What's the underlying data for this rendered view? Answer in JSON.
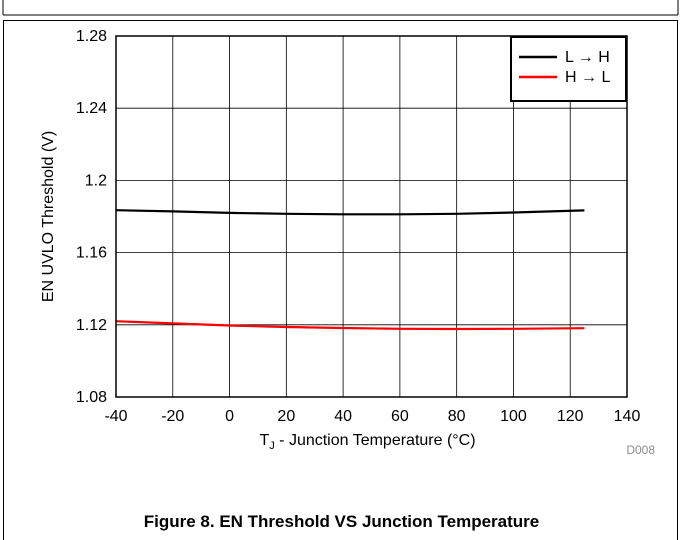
{
  "chart_data": {
    "type": "line",
    "xlabel_main": "T",
    "xlabel_sub": "J",
    "xlabel_rest": " - Junction Temperature (°C)",
    "ylabel": "EN UVLO Threshold (V)",
    "xlim": [
      -40,
      140
    ],
    "ylim": [
      1.08,
      1.28
    ],
    "x_ticks": [
      -40,
      -20,
      0,
      20,
      40,
      60,
      80,
      100,
      120,
      140
    ],
    "y_ticks": [
      1.08,
      1.12,
      1.16,
      1.2,
      1.24,
      1.28
    ],
    "x_tick_labels": [
      "-40",
      "-20",
      "0",
      "20",
      "40",
      "60",
      "80",
      "100",
      "120",
      "140"
    ],
    "y_tick_labels": [
      "1.08",
      "1.12",
      "1.16",
      "1.2",
      "1.24",
      "1.28"
    ],
    "grid": true,
    "legend_position": "top-right",
    "series": [
      {
        "name": "L → H",
        "color": "#000000",
        "x": [
          -40,
          -20,
          0,
          20,
          40,
          60,
          80,
          100,
          125
        ],
        "y": [
          1.1835,
          1.1828,
          1.182,
          1.1815,
          1.1812,
          1.1812,
          1.1815,
          1.1822,
          1.1834
        ]
      },
      {
        "name": "H → L",
        "color": "#ff0000",
        "x": [
          -40,
          -20,
          0,
          20,
          40,
          60,
          80,
          100,
          125
        ],
        "y": [
          1.122,
          1.1208,
          1.1196,
          1.1188,
          1.1182,
          1.1178,
          1.1177,
          1.1178,
          1.1181
        ]
      }
    ],
    "note": "D008"
  },
  "caption": "Figure 8. EN Threshold VS Junction Temperature"
}
